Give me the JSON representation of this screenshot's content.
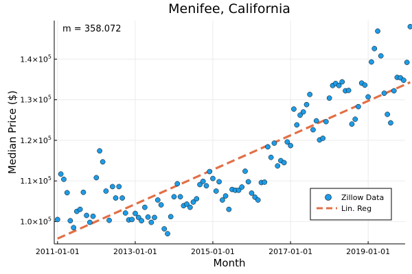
{
  "chart_data": {
    "type": "scatter",
    "title": "Menifee, California",
    "xlabel": "Month",
    "ylabel": "Median Price ($)",
    "annotation": "m = 358.072",
    "x_ticks": [
      "2011-01-01",
      "2013-01-01",
      "2015-01-01",
      "2017-01-01",
      "2019-01-01"
    ],
    "y_ticks": [
      {
        "value": 100000,
        "base": "1.0×10",
        "exp": "5"
      },
      {
        "value": 110000,
        "base": "1.1×10",
        "exp": "5"
      },
      {
        "value": 120000,
        "base": "1.2×10",
        "exp": "5"
      },
      {
        "value": 130000,
        "base": "1.3×10",
        "exp": "5"
      },
      {
        "value": 140000,
        "base": "1.4×10",
        "exp": "5"
      }
    ],
    "xlim": [
      "2010-12-01",
      "2019-12-15"
    ],
    "ylim": [
      94500,
      149500
    ],
    "grid": true,
    "legend_position": "bottom-right",
    "colors": {
      "points": "#1f9be5",
      "regression": "#e26f46",
      "grid": "#ebebeb"
    },
    "series": [
      {
        "name": "Zillow Data",
        "kind": "scatter",
        "points": [
          [
            "2011-01-01",
            100500
          ],
          [
            "2011-02-01",
            111700
          ],
          [
            "2011-03-01",
            110400
          ],
          [
            "2011-04-01",
            107100
          ],
          [
            "2011-05-01",
            100200
          ],
          [
            "2011-06-01",
            98500
          ],
          [
            "2011-07-01",
            102500
          ],
          [
            "2011-08-01",
            103000
          ],
          [
            "2011-09-01",
            107200
          ],
          [
            "2011-10-01",
            101500
          ],
          [
            "2011-11-01",
            99800
          ],
          [
            "2011-12-01",
            101300
          ],
          [
            "2012-01-01",
            110800
          ],
          [
            "2012-02-01",
            117400
          ],
          [
            "2012-03-01",
            114700
          ],
          [
            "2012-04-01",
            107500
          ],
          [
            "2012-05-01",
            100300
          ],
          [
            "2012-06-01",
            108600
          ],
          [
            "2012-07-01",
            105800
          ],
          [
            "2012-08-01",
            108600
          ],
          [
            "2012-09-01",
            105800
          ],
          [
            "2012-10-01",
            102100
          ],
          [
            "2012-11-01",
            100400
          ],
          [
            "2012-12-01",
            100500
          ],
          [
            "2013-01-01",
            102000
          ],
          [
            "2013-02-01",
            101000
          ],
          [
            "2013-03-01",
            100200
          ],
          [
            "2013-04-01",
            103500
          ],
          [
            "2013-05-01",
            101100
          ],
          [
            "2013-06-01",
            99800
          ],
          [
            "2013-07-01",
            101000
          ],
          [
            "2013-08-01",
            105300
          ],
          [
            "2013-09-01",
            104100
          ],
          [
            "2013-10-01",
            98200
          ],
          [
            "2013-11-01",
            97000
          ],
          [
            "2013-12-01",
            101200
          ],
          [
            "2014-01-01",
            106100
          ],
          [
            "2014-02-01",
            109300
          ],
          [
            "2014-03-01",
            106100
          ],
          [
            "2014-04-01",
            103900
          ],
          [
            "2014-05-01",
            104300
          ],
          [
            "2014-06-01",
            103500
          ],
          [
            "2014-07-01",
            104800
          ],
          [
            "2014-08-01",
            105600
          ],
          [
            "2014-09-01",
            109100
          ],
          [
            "2014-10-01",
            109900
          ],
          [
            "2014-11-01",
            108800
          ],
          [
            "2014-12-01",
            112300
          ],
          [
            "2015-01-01",
            110600
          ],
          [
            "2015-02-01",
            107500
          ],
          [
            "2015-03-01",
            109800
          ],
          [
            "2015-04-01",
            105300
          ],
          [
            "2015-05-01",
            106300
          ],
          [
            "2015-06-01",
            103000
          ],
          [
            "2015-07-01",
            107900
          ],
          [
            "2015-08-01",
            107700
          ],
          [
            "2015-09-01",
            107700
          ],
          [
            "2015-10-01",
            108500
          ],
          [
            "2015-11-01",
            112400
          ],
          [
            "2015-12-01",
            109800
          ],
          [
            "2016-01-01",
            107000
          ],
          [
            "2016-02-01",
            106000
          ],
          [
            "2016-03-01",
            105300
          ],
          [
            "2016-04-01",
            109600
          ],
          [
            "2016-05-01",
            109700
          ],
          [
            "2016-06-01",
            118400
          ],
          [
            "2016-07-01",
            115800
          ],
          [
            "2016-08-01",
            119300
          ],
          [
            "2016-09-01",
            113700
          ],
          [
            "2016-10-01",
            115000
          ],
          [
            "2016-11-01",
            114500
          ],
          [
            "2016-12-01",
            119600
          ],
          [
            "2017-01-01",
            118700
          ],
          [
            "2017-02-01",
            127700
          ],
          [
            "2017-03-01",
            123800
          ],
          [
            "2017-04-01",
            126200
          ],
          [
            "2017-05-01",
            127000
          ],
          [
            "2017-06-01",
            128800
          ],
          [
            "2017-07-01",
            131300
          ],
          [
            "2017-08-01",
            122600
          ],
          [
            "2017-09-01",
            124800
          ],
          [
            "2017-10-01",
            120100
          ],
          [
            "2017-11-01",
            120500
          ],
          [
            "2017-12-01",
            124600
          ],
          [
            "2018-01-01",
            130400
          ],
          [
            "2018-02-01",
            133500
          ],
          [
            "2018-03-01",
            134000
          ],
          [
            "2018-04-01",
            133500
          ],
          [
            "2018-05-01",
            134400
          ],
          [
            "2018-06-01",
            132200
          ],
          [
            "2018-07-01",
            132300
          ],
          [
            "2018-08-01",
            124000
          ],
          [
            "2018-09-01",
            125200
          ],
          [
            "2018-10-01",
            128300
          ],
          [
            "2018-11-01",
            134100
          ],
          [
            "2018-12-01",
            133600
          ],
          [
            "2019-01-01",
            130700
          ],
          [
            "2019-02-01",
            139300
          ],
          [
            "2019-03-01",
            142600
          ],
          [
            "2019-04-01",
            146900
          ],
          [
            "2019-05-01",
            140800
          ],
          [
            "2019-06-01",
            131600
          ],
          [
            "2019-07-01",
            126400
          ],
          [
            "2019-08-01",
            124300
          ],
          [
            "2019-09-01",
            132200
          ],
          [
            "2019-10-01",
            135500
          ],
          [
            "2019-11-01",
            135400
          ],
          [
            "2019-12-01",
            134800
          ],
          [
            "2020-01-01",
            139200
          ],
          [
            "2020-02-01",
            148000
          ]
        ]
      },
      {
        "name": "Lin. Reg",
        "kind": "line",
        "points": [
          [
            "2011-01-01",
            95800
          ],
          [
            "2020-02-01",
            134300
          ]
        ]
      }
    ]
  }
}
